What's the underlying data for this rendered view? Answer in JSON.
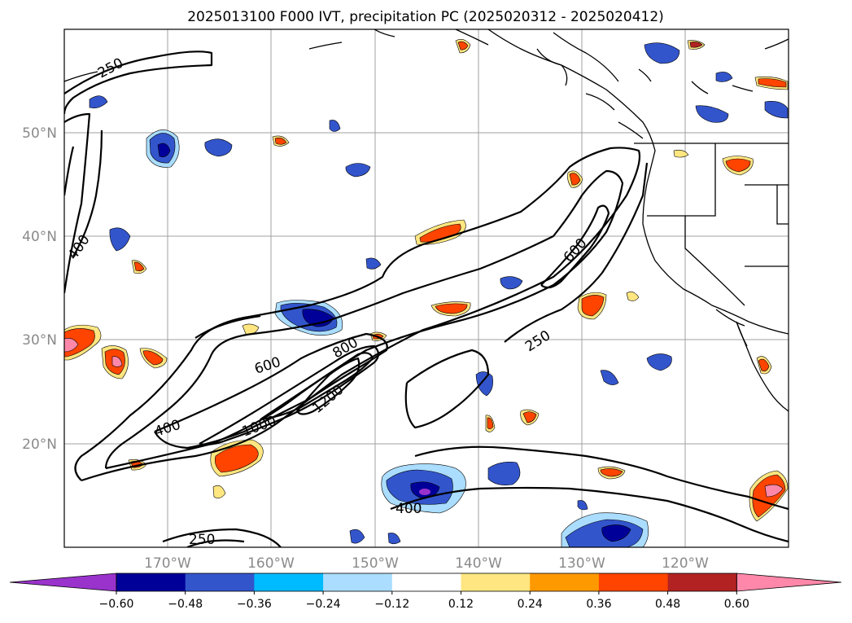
{
  "title": "2025013100 F000 IVT, precipitation PC (2025020312 - 2025020412)",
  "lat_labels": [
    "50°N",
    "40°N",
    "30°N",
    "20°N"
  ],
  "lon_labels": [
    "170°W",
    "160°W",
    "150°W",
    "140°W",
    "130°W",
    "120°W"
  ],
  "contour_labels": [
    "250",
    "400",
    "600",
    "800",
    "1000",
    "1200",
    "600",
    "250",
    "400",
    "250"
  ],
  "colorbar": {
    "ticks": [
      "−0.60",
      "−0.48",
      "−0.36",
      "−0.24",
      "−0.12",
      "0.12",
      "0.24",
      "0.36",
      "0.48",
      "0.60"
    ],
    "colors": [
      "#9933cc",
      "#000099",
      "#3355cc",
      "#00bbff",
      "#aaddff",
      "#ffffff",
      "#ffe680",
      "#ff9900",
      "#ff4400",
      "#b22222",
      "#ff88aa"
    ]
  }
}
